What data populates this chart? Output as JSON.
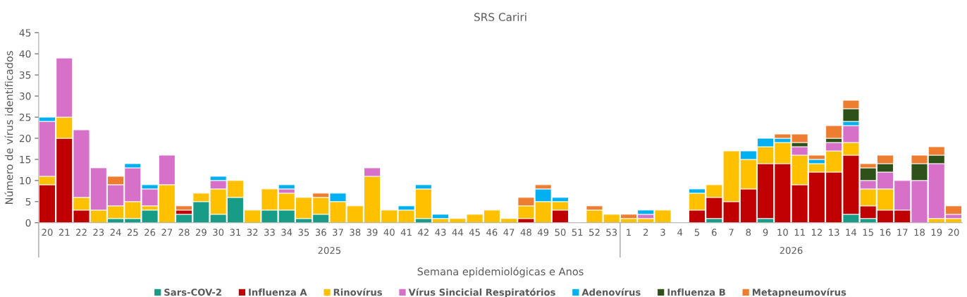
{
  "chart_data": {
    "type": "bar",
    "stacked": true,
    "title": "SRS Cariri",
    "xlabel": "Semana epidemiológicas e Anos",
    "ylabel": "Número de vírus identificados",
    "categories": [
      "20",
      "21",
      "22",
      "23",
      "24",
      "25",
      "26",
      "27",
      "28",
      "29",
      "30",
      "31",
      "32",
      "33",
      "34",
      "35",
      "36",
      "37",
      "38",
      "39",
      "40",
      "41",
      "42",
      "43",
      "44",
      "45",
      "46",
      "47",
      "48",
      "49",
      "50",
      "51",
      "52",
      "53",
      "1",
      "2",
      "3",
      "4",
      "5",
      "6",
      "7",
      "8",
      "9",
      "10",
      "11",
      "12",
      "13",
      "14",
      "15",
      "16",
      "17",
      "18",
      "19",
      "20"
    ],
    "annotations": [
      "2025",
      "2026"
    ],
    "ylim": [
      0,
      45
    ],
    "yticks": [
      0,
      5,
      10,
      15,
      20,
      25,
      30,
      35,
      40,
      45
    ],
    "grid": false,
    "legend": "bottom",
    "series": [
      {
        "name": "Sars-COV-2",
        "color": "#179c88",
        "values": [
          0,
          0,
          0,
          0,
          1,
          1,
          3,
          0,
          2,
          5,
          2,
          6,
          0,
          3,
          3,
          1,
          2,
          0,
          0,
          0,
          0,
          0,
          1,
          0,
          0,
          0,
          0,
          0,
          0,
          0,
          0,
          0,
          0,
          0,
          0,
          0,
          0,
          0,
          0,
          1,
          0,
          0,
          1,
          0,
          0,
          0,
          0,
          2,
          1,
          0,
          0,
          0,
          0,
          0
        ]
      },
      {
        "name": "Influenza A",
        "color": "#c00000",
        "values": [
          9,
          20,
          3,
          0,
          0,
          0,
          0,
          0,
          1,
          0,
          0,
          0,
          0,
          0,
          0,
          0,
          0,
          0,
          0,
          0,
          0,
          0,
          0,
          0,
          0,
          0,
          0,
          0,
          1,
          0,
          3,
          0,
          0,
          0,
          0,
          0,
          0,
          0,
          3,
          5,
          5,
          8,
          13,
          14,
          9,
          12,
          12,
          14,
          3,
          3,
          3,
          0,
          0,
          0
        ]
      },
      {
        "name": "Rinovírus",
        "color": "#ffc000",
        "values": [
          2,
          5,
          3,
          3,
          3,
          4,
          1,
          9,
          0,
          2,
          6,
          4,
          3,
          5,
          4,
          5,
          4,
          5,
          4,
          11,
          3,
          3,
          7,
          1,
          1,
          2,
          3,
          1,
          3,
          5,
          2,
          0,
          3,
          2,
          1,
          1,
          3,
          0,
          4,
          3,
          12,
          7,
          4,
          5,
          7,
          2,
          5,
          3,
          4,
          5,
          0,
          0,
          1,
          1
        ]
      },
      {
        "name": "Vírus Sincicial Respiratórios",
        "color": "#d670c8",
        "values": [
          13,
          14,
          16,
          10,
          5,
          8,
          4,
          7,
          0,
          0,
          2,
          0,
          0,
          0,
          1,
          0,
          0,
          0,
          0,
          2,
          0,
          0,
          0,
          0,
          0,
          0,
          0,
          0,
          0,
          0,
          0,
          0,
          0,
          0,
          0,
          1,
          0,
          0,
          0,
          0,
          0,
          0,
          0,
          0,
          2,
          0,
          2,
          4,
          2,
          4,
          7,
          10,
          13,
          1
        ]
      },
      {
        "name": "Adenovírus",
        "color": "#00b0f0",
        "values": [
          1,
          0,
          0,
          0,
          0,
          1,
          1,
          0,
          0,
          0,
          1,
          0,
          0,
          0,
          1,
          0,
          0,
          2,
          0,
          0,
          0,
          1,
          1,
          1,
          0,
          0,
          0,
          0,
          0,
          3,
          1,
          0,
          0,
          0,
          0,
          1,
          0,
          0,
          1,
          0,
          0,
          2,
          2,
          1,
          0,
          1,
          0,
          1,
          0,
          0,
          0,
          0,
          0,
          0
        ]
      },
      {
        "name": "Influenza B",
        "color": "#2d5118",
        "values": [
          0,
          0,
          0,
          0,
          0,
          0,
          0,
          0,
          0,
          0,
          0,
          0,
          0,
          0,
          0,
          0,
          0,
          0,
          0,
          0,
          0,
          0,
          0,
          0,
          0,
          0,
          0,
          0,
          0,
          0,
          0,
          0,
          0,
          0,
          0,
          0,
          0,
          0,
          0,
          0,
          0,
          0,
          0,
          0,
          1,
          0,
          1,
          3,
          3,
          2,
          0,
          4,
          2,
          0
        ]
      },
      {
        "name": "Metapneumovírus",
        "color": "#ed7d31",
        "values": [
          0,
          0,
          0,
          0,
          2,
          0,
          0,
          0,
          1,
          0,
          0,
          0,
          0,
          0,
          0,
          0,
          1,
          0,
          0,
          0,
          0,
          0,
          0,
          0,
          0,
          0,
          0,
          0,
          2,
          1,
          0,
          0,
          1,
          0,
          1,
          0,
          0,
          0,
          0,
          0,
          0,
          0,
          0,
          1,
          2,
          1,
          3,
          2,
          1,
          2,
          0,
          2,
          2,
          2
        ]
      }
    ]
  }
}
